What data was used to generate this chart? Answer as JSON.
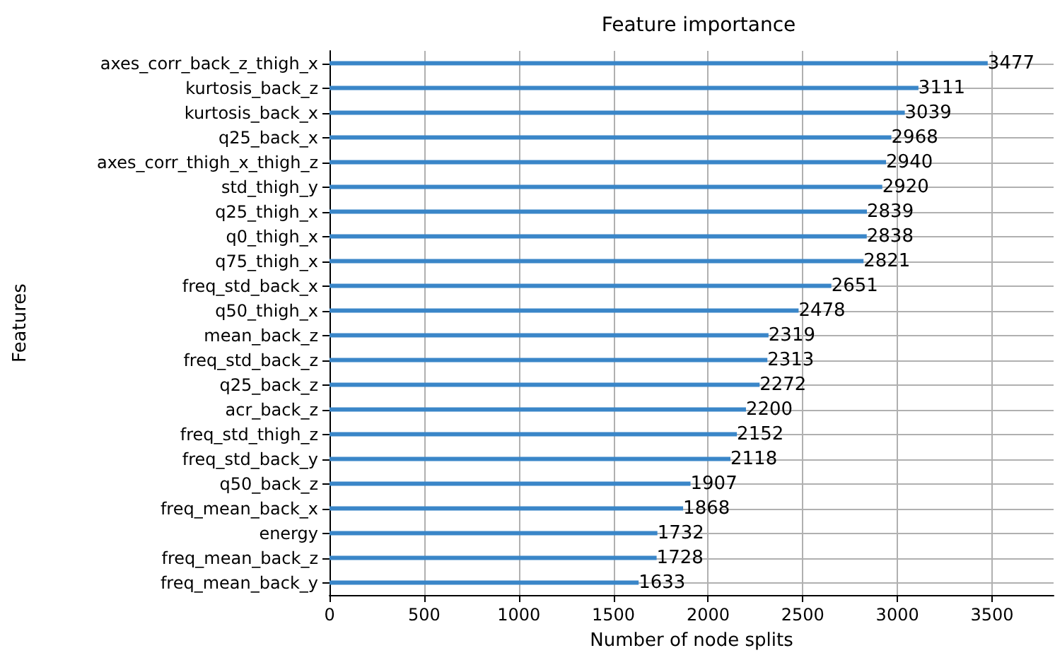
{
  "chart_data": {
    "type": "bar",
    "orientation": "horizontal",
    "title": "Feature importance",
    "xlabel": "Number of node splits",
    "ylabel": "Features",
    "categories": [
      "axes_corr_back_z_thigh_x",
      "kurtosis_back_z",
      "kurtosis_back_x",
      "q25_back_x",
      "axes_corr_thigh_x_thigh_z",
      "std_thigh_y",
      "q25_thigh_x",
      "q0_thigh_x",
      "q75_thigh_x",
      "freq_std_back_x",
      "q50_thigh_x",
      "mean_back_z",
      "freq_std_back_z",
      "q25_back_z",
      "acr_back_z",
      "freq_std_thigh_z",
      "freq_std_back_y",
      "q50_back_z",
      "freq_mean_back_x",
      "energy",
      "freq_mean_back_z",
      "freq_mean_back_y"
    ],
    "values": [
      3477,
      3111,
      3039,
      2968,
      2940,
      2920,
      2839,
      2838,
      2821,
      2651,
      2478,
      2319,
      2313,
      2272,
      2200,
      2152,
      2118,
      1907,
      1868,
      1732,
      1728,
      1633
    ],
    "color": "#3a86c8",
    "data_labels": true,
    "grid": true,
    "xlim": [
      0,
      3825
    ],
    "xticks": [
      0,
      500,
      1000,
      1500,
      2000,
      2500,
      3000,
      3500
    ]
  }
}
